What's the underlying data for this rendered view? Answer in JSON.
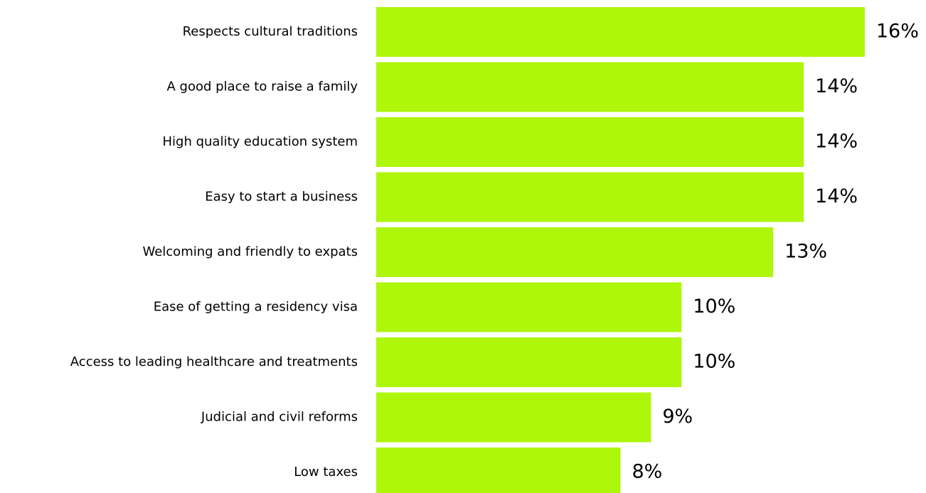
{
  "chart_data": {
    "type": "bar",
    "orientation": "horizontal",
    "title": "",
    "xlabel": "",
    "ylabel": "",
    "grid": false,
    "legend": "none",
    "bar_color": "#AEF60A",
    "categories": [
      "Respects cultural traditions",
      "A good place to raise a family",
      "High quality education system",
      "Easy to start a business",
      "Welcoming and friendly to expats",
      "Ease of getting a residency visa",
      "Access to leading healthcare and treatments",
      "Judicial and civil reforms",
      "Low taxes"
    ],
    "values": [
      16,
      14,
      14,
      14,
      13,
      10,
      10,
      9,
      8
    ],
    "data_labels": [
      "16%",
      "14%",
      "14%",
      "14%",
      "13%",
      "10%",
      "10%",
      "9%",
      "8%"
    ]
  }
}
